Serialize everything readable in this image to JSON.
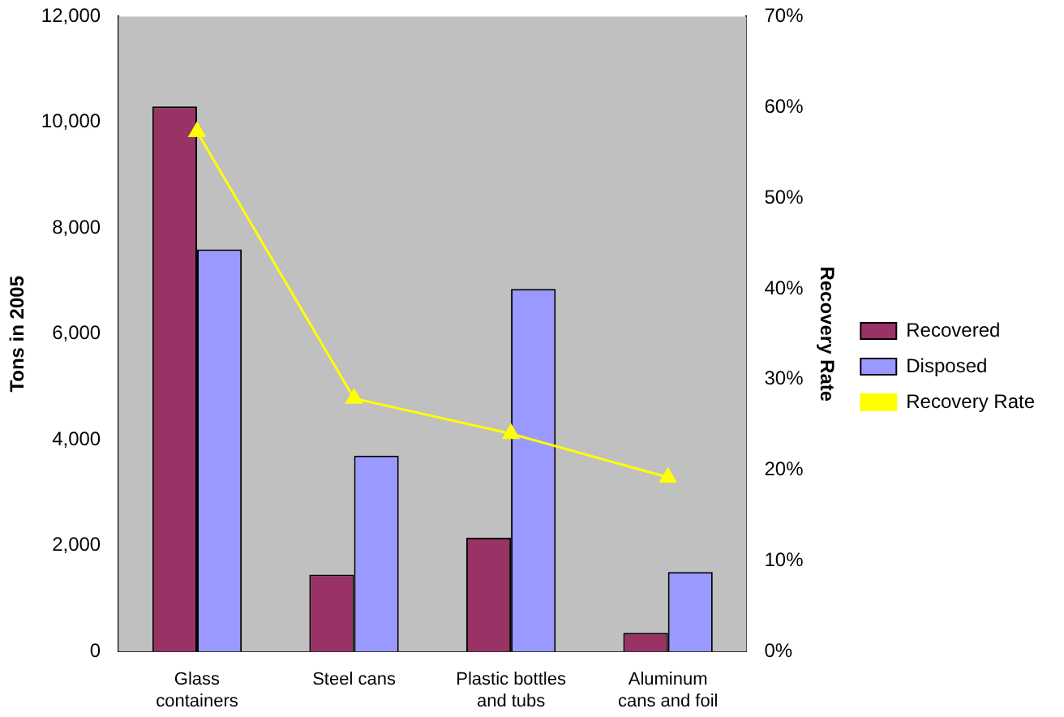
{
  "chart_data": {
    "type": "bar",
    "ylabel": "Tons in 2005",
    "y2label": "Recovery Rate",
    "categories": [
      "Glass containers",
      "Steel cans",
      "Plastic bottles and tubs",
      "Aluminum cans and foil"
    ],
    "series": [
      {
        "name": "Recovered",
        "color": "#993366",
        "values": [
          10300,
          1450,
          2150,
          350
        ]
      },
      {
        "name": "Disposed",
        "color": "#9999ff",
        "values": [
          7600,
          3700,
          6850,
          1500
        ]
      },
      {
        "name": "Recovery Rate",
        "type": "line",
        "axis": "y2",
        "color": "#ffff00",
        "marker": "triangle",
        "values": [
          57.3,
          27.9,
          24,
          19.2
        ]
      }
    ],
    "ylim": [
      0,
      12000
    ],
    "yticks": [
      {
        "value": 0,
        "label": "0"
      },
      {
        "value": 2000,
        "label": "2,000"
      },
      {
        "value": 4000,
        "label": "4,000"
      },
      {
        "value": 6000,
        "label": "6,000"
      },
      {
        "value": 8000,
        "label": "8,000"
      },
      {
        "value": 10000,
        "label": "10,000"
      },
      {
        "value": 12000,
        "label": "12,000"
      }
    ],
    "y2lim": [
      0,
      70
    ],
    "y2ticks": [
      {
        "value": 0,
        "label": "0%"
      },
      {
        "value": 10,
        "label": "10%"
      },
      {
        "value": 20,
        "label": "20%"
      },
      {
        "value": 30,
        "label": "30%"
      },
      {
        "value": 40,
        "label": "40%"
      },
      {
        "value": 50,
        "label": "50%"
      },
      {
        "value": 60,
        "label": "60%"
      },
      {
        "value": 70,
        "label": "70%"
      }
    ],
    "grid": false,
    "legend": "right"
  }
}
